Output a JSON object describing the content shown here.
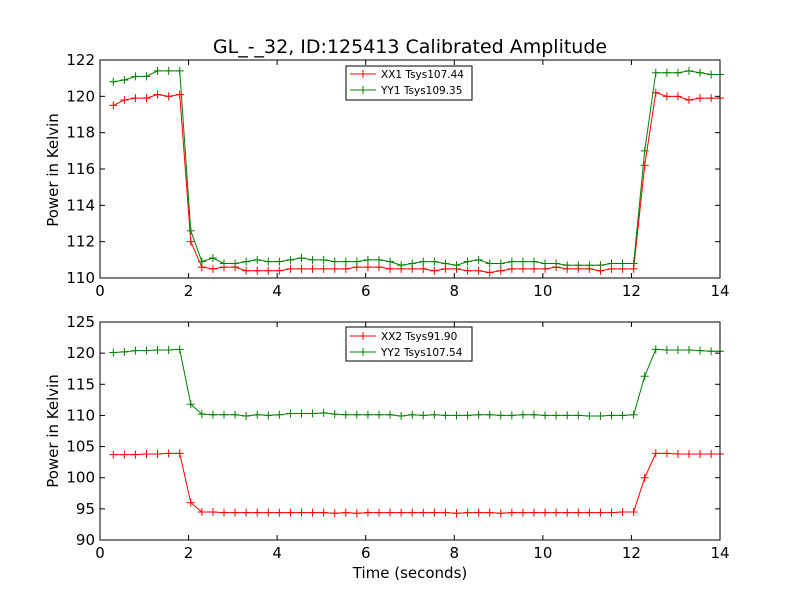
{
  "chart_data": [
    {
      "type": "line",
      "title": "GL_-_32, ID:125413 Calibrated Amplitude",
      "xlabel": "",
      "ylabel": "Power in Kelvin",
      "xlim": [
        0,
        14
      ],
      "ylim": [
        110,
        122
      ],
      "xticks": [
        "0",
        "2",
        "4",
        "6",
        "8",
        "10",
        "12",
        "14"
      ],
      "yticks": [
        "110",
        "112",
        "114",
        "116",
        "118",
        "120",
        "122"
      ],
      "grid": false,
      "legend_position": "top-center",
      "x": [
        0.3,
        0.55,
        0.8,
        1.05,
        1.3,
        1.55,
        1.8,
        2.05,
        2.3,
        2.55,
        2.8,
        3.05,
        3.3,
        3.55,
        3.8,
        4.05,
        4.3,
        4.55,
        4.8,
        5.05,
        5.3,
        5.55,
        5.8,
        6.05,
        6.3,
        6.55,
        6.8,
        7.05,
        7.3,
        7.55,
        7.8,
        8.05,
        8.3,
        8.55,
        8.8,
        9.05,
        9.3,
        9.55,
        9.8,
        10.05,
        10.3,
        10.55,
        10.8,
        11.05,
        11.3,
        11.55,
        11.8,
        12.05,
        12.3,
        12.55,
        12.8,
        13.05,
        13.3,
        13.55,
        13.8,
        14.0
      ],
      "series": [
        {
          "name": "XX1 Tsys107.44",
          "color": "#ff0000",
          "values": [
            119.5,
            119.8,
            119.9,
            119.9,
            120.1,
            120.0,
            120.1,
            112.0,
            110.6,
            110.5,
            110.6,
            110.6,
            110.4,
            110.4,
            110.4,
            110.4,
            110.5,
            110.5,
            110.5,
            110.5,
            110.5,
            110.5,
            110.6,
            110.6,
            110.6,
            110.5,
            110.5,
            110.5,
            110.5,
            110.4,
            110.5,
            110.5,
            110.4,
            110.4,
            110.3,
            110.4,
            110.5,
            110.5,
            110.5,
            110.5,
            110.6,
            110.5,
            110.5,
            110.5,
            110.4,
            110.5,
            110.5,
            110.5,
            116.2,
            120.2,
            120.0,
            120.0,
            119.8,
            119.9,
            119.9,
            119.9
          ]
        },
        {
          "name": "YY1 Tsys109.35",
          "color": "#008000",
          "values": [
            120.8,
            120.9,
            121.1,
            121.1,
            121.4,
            121.4,
            121.4,
            112.6,
            110.9,
            111.1,
            110.8,
            110.8,
            110.9,
            111.0,
            110.9,
            110.9,
            111.0,
            111.1,
            111.0,
            111.0,
            110.9,
            110.9,
            110.9,
            111.0,
            111.0,
            110.9,
            110.7,
            110.8,
            110.9,
            110.9,
            110.8,
            110.7,
            110.9,
            111.0,
            110.8,
            110.8,
            110.9,
            110.9,
            110.9,
            110.8,
            110.8,
            110.7,
            110.7,
            110.7,
            110.7,
            110.8,
            110.8,
            110.8,
            117.0,
            121.3,
            121.3,
            121.3,
            121.4,
            121.3,
            121.2,
            121.2
          ]
        }
      ]
    },
    {
      "type": "line",
      "title": "",
      "xlabel": "Time (seconds)",
      "ylabel": "Power in Kelvin",
      "xlim": [
        0,
        14
      ],
      "ylim": [
        90,
        125
      ],
      "xticks": [
        "0",
        "2",
        "4",
        "6",
        "8",
        "10",
        "12",
        "14"
      ],
      "yticks": [
        "90",
        "95",
        "100",
        "105",
        "110",
        "115",
        "120",
        "125"
      ],
      "grid": false,
      "legend_position": "top-center",
      "x": [
        0.3,
        0.55,
        0.8,
        1.05,
        1.3,
        1.55,
        1.8,
        2.05,
        2.3,
        2.55,
        2.8,
        3.05,
        3.3,
        3.55,
        3.8,
        4.05,
        4.3,
        4.55,
        4.8,
        5.05,
        5.3,
        5.55,
        5.8,
        6.05,
        6.3,
        6.55,
        6.8,
        7.05,
        7.3,
        7.55,
        7.8,
        8.05,
        8.3,
        8.55,
        8.8,
        9.05,
        9.3,
        9.55,
        9.8,
        10.05,
        10.3,
        10.55,
        10.8,
        11.05,
        11.3,
        11.55,
        11.8,
        12.05,
        12.3,
        12.55,
        12.8,
        13.05,
        13.3,
        13.55,
        13.8,
        14.0
      ],
      "series": [
        {
          "name": "XX2 Tsys91.90",
          "color": "#ff0000",
          "values": [
            103.7,
            103.7,
            103.7,
            103.8,
            103.8,
            103.9,
            103.9,
            96.0,
            94.5,
            94.5,
            94.4,
            94.4,
            94.4,
            94.4,
            94.4,
            94.4,
            94.4,
            94.4,
            94.4,
            94.4,
            94.3,
            94.4,
            94.3,
            94.4,
            94.4,
            94.4,
            94.4,
            94.4,
            94.4,
            94.4,
            94.4,
            94.3,
            94.4,
            94.4,
            94.4,
            94.3,
            94.4,
            94.4,
            94.4,
            94.4,
            94.4,
            94.4,
            94.4,
            94.4,
            94.4,
            94.4,
            94.5,
            94.5,
            100.0,
            103.9,
            103.9,
            103.8,
            103.8,
            103.8,
            103.8,
            103.8
          ]
        },
        {
          "name": "YY2 Tsys107.54",
          "color": "#008000",
          "values": [
            120.1,
            120.2,
            120.4,
            120.4,
            120.5,
            120.5,
            120.6,
            111.8,
            110.2,
            110.1,
            110.1,
            110.1,
            109.9,
            110.1,
            110.0,
            110.1,
            110.3,
            110.3,
            110.3,
            110.4,
            110.2,
            110.1,
            110.1,
            110.1,
            110.1,
            110.1,
            109.9,
            110.1,
            110.0,
            110.1,
            110.0,
            110.0,
            110.0,
            110.1,
            110.1,
            110.0,
            110.0,
            110.1,
            110.1,
            110.0,
            110.0,
            110.0,
            110.0,
            109.9,
            109.9,
            110.0,
            110.0,
            110.1,
            116.3,
            120.6,
            120.5,
            120.5,
            120.5,
            120.4,
            120.3,
            120.3
          ]
        }
      ]
    }
  ]
}
